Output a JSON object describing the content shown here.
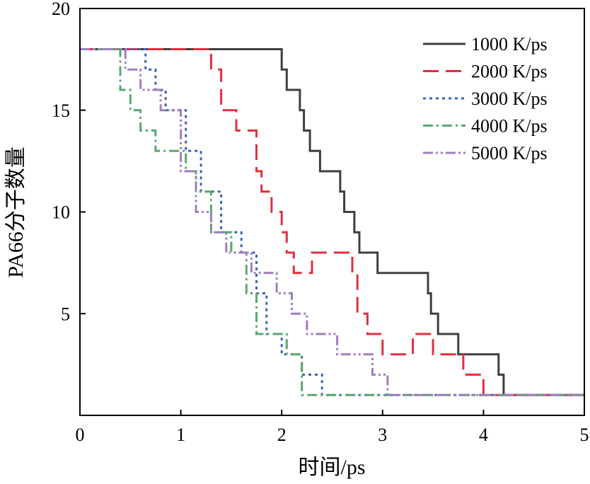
{
  "chart_data": {
    "type": "line",
    "title": "",
    "xlabel": "时间/ps",
    "ylabel": "PA66分子数量",
    "xlim": [
      0,
      5
    ],
    "ylim": [
      0,
      20
    ],
    "xticks": [
      0,
      1,
      2,
      3,
      4,
      5
    ],
    "yticks": [
      5,
      10,
      15,
      20
    ],
    "grid": false,
    "legend_position": "top-right",
    "line_shape": "step",
    "series": [
      {
        "name": "1000 K/ps",
        "color": "#3f3f3f",
        "dash": "solid",
        "points": [
          [
            0,
            18
          ],
          [
            2.0,
            18
          ],
          [
            2.0,
            17
          ],
          [
            2.05,
            17
          ],
          [
            2.05,
            16
          ],
          [
            2.18,
            16
          ],
          [
            2.18,
            15
          ],
          [
            2.22,
            15
          ],
          [
            2.22,
            14
          ],
          [
            2.28,
            14
          ],
          [
            2.28,
            13
          ],
          [
            2.38,
            13
          ],
          [
            2.38,
            12
          ],
          [
            2.58,
            12
          ],
          [
            2.58,
            11
          ],
          [
            2.62,
            11
          ],
          [
            2.62,
            10
          ],
          [
            2.72,
            10
          ],
          [
            2.72,
            9
          ],
          [
            2.77,
            9
          ],
          [
            2.77,
            8
          ],
          [
            2.95,
            8
          ],
          [
            2.95,
            7
          ],
          [
            3.45,
            7
          ],
          [
            3.45,
            6
          ],
          [
            3.48,
            6
          ],
          [
            3.48,
            5
          ],
          [
            3.55,
            5
          ],
          [
            3.55,
            4
          ],
          [
            3.75,
            4
          ],
          [
            3.75,
            3
          ],
          [
            4.15,
            3
          ],
          [
            4.15,
            2
          ],
          [
            4.2,
            2
          ],
          [
            4.2,
            1
          ],
          [
            5.0,
            1
          ]
        ]
      },
      {
        "name": "2000 K/ps",
        "color": "#e0313f",
        "dash": "long-dash",
        "points": [
          [
            0,
            18
          ],
          [
            1.3,
            18
          ],
          [
            1.3,
            17
          ],
          [
            1.4,
            17
          ],
          [
            1.4,
            15
          ],
          [
            1.55,
            15
          ],
          [
            1.55,
            14
          ],
          [
            1.75,
            14
          ],
          [
            1.75,
            12
          ],
          [
            1.8,
            12
          ],
          [
            1.8,
            11
          ],
          [
            1.9,
            11
          ],
          [
            1.9,
            10
          ],
          [
            2.0,
            10
          ],
          [
            2.0,
            9
          ],
          [
            2.05,
            9
          ],
          [
            2.05,
            8
          ],
          [
            2.12,
            8
          ],
          [
            2.12,
            7
          ],
          [
            2.3,
            7
          ],
          [
            2.3,
            8
          ],
          [
            2.7,
            8
          ],
          [
            2.7,
            7
          ],
          [
            2.75,
            7
          ],
          [
            2.75,
            5
          ],
          [
            2.85,
            5
          ],
          [
            2.85,
            4
          ],
          [
            3.0,
            4
          ],
          [
            3.0,
            3
          ],
          [
            3.3,
            3
          ],
          [
            3.3,
            4
          ],
          [
            3.5,
            4
          ],
          [
            3.5,
            3
          ],
          [
            3.8,
            3
          ],
          [
            3.8,
            2
          ],
          [
            4.0,
            2
          ],
          [
            4.0,
            1
          ],
          [
            5.0,
            1
          ]
        ]
      },
      {
        "name": "3000 K/ps",
        "color": "#3b63b7",
        "dash": "dotted",
        "points": [
          [
            0,
            18
          ],
          [
            0.65,
            18
          ],
          [
            0.65,
            17
          ],
          [
            0.75,
            17
          ],
          [
            0.75,
            16
          ],
          [
            0.85,
            16
          ],
          [
            0.85,
            15
          ],
          [
            1.05,
            15
          ],
          [
            1.05,
            13
          ],
          [
            1.2,
            13
          ],
          [
            1.2,
            11
          ],
          [
            1.4,
            11
          ],
          [
            1.4,
            9
          ],
          [
            1.6,
            9
          ],
          [
            1.6,
            8
          ],
          [
            1.75,
            8
          ],
          [
            1.75,
            6
          ],
          [
            1.85,
            6
          ],
          [
            1.85,
            4
          ],
          [
            2.0,
            4
          ],
          [
            2.0,
            3
          ],
          [
            2.2,
            3
          ],
          [
            2.2,
            2
          ],
          [
            2.4,
            2
          ],
          [
            2.4,
            1
          ],
          [
            5.0,
            1
          ]
        ]
      },
      {
        "name": "4000 K/ps",
        "color": "#5aa86e",
        "dash": "dash-dot",
        "points": [
          [
            0,
            18
          ],
          [
            0.4,
            18
          ],
          [
            0.4,
            16
          ],
          [
            0.5,
            16
          ],
          [
            0.5,
            15
          ],
          [
            0.6,
            15
          ],
          [
            0.6,
            14
          ],
          [
            0.75,
            14
          ],
          [
            0.75,
            13
          ],
          [
            1.05,
            13
          ],
          [
            1.05,
            12
          ],
          [
            1.15,
            12
          ],
          [
            1.15,
            11
          ],
          [
            1.3,
            11
          ],
          [
            1.3,
            9
          ],
          [
            1.5,
            9
          ],
          [
            1.5,
            8
          ],
          [
            1.65,
            8
          ],
          [
            1.65,
            6
          ],
          [
            1.75,
            6
          ],
          [
            1.75,
            4
          ],
          [
            2.05,
            4
          ],
          [
            2.05,
            3
          ],
          [
            2.2,
            3
          ],
          [
            2.2,
            1
          ],
          [
            5.0,
            1
          ]
        ]
      },
      {
        "name": "5000 K/ps",
        "color": "#9f7fc0",
        "dash": "dash-dot-dot",
        "points": [
          [
            0,
            18
          ],
          [
            0.45,
            18
          ],
          [
            0.45,
            17
          ],
          [
            0.6,
            17
          ],
          [
            0.6,
            16
          ],
          [
            0.8,
            16
          ],
          [
            0.8,
            15
          ],
          [
            1.0,
            15
          ],
          [
            1.0,
            12
          ],
          [
            1.15,
            12
          ],
          [
            1.15,
            10
          ],
          [
            1.3,
            10
          ],
          [
            1.3,
            9
          ],
          [
            1.45,
            9
          ],
          [
            1.45,
            8
          ],
          [
            1.7,
            8
          ],
          [
            1.7,
            7
          ],
          [
            1.95,
            7
          ],
          [
            1.95,
            6
          ],
          [
            2.1,
            6
          ],
          [
            2.1,
            5
          ],
          [
            2.25,
            5
          ],
          [
            2.25,
            4
          ],
          [
            2.55,
            4
          ],
          [
            2.55,
            3
          ],
          [
            2.9,
            3
          ],
          [
            2.9,
            2
          ],
          [
            3.05,
            2
          ],
          [
            3.05,
            1
          ],
          [
            5.0,
            1
          ]
        ]
      }
    ]
  }
}
